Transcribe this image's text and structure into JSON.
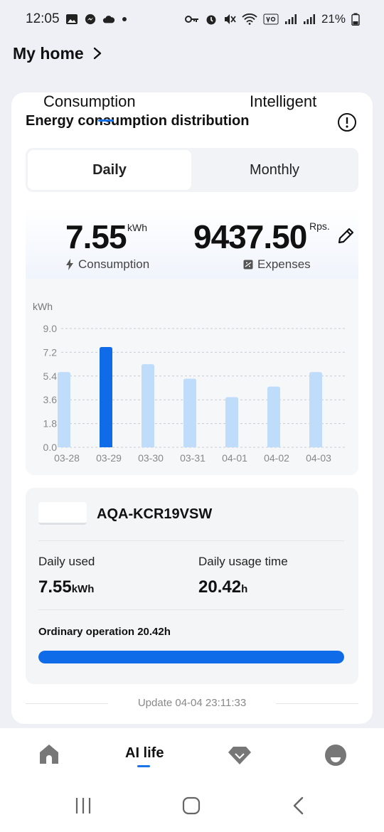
{
  "status_bar": {
    "time": "12:05",
    "battery": "21%"
  },
  "header": {
    "title": "My home"
  },
  "tabs": {
    "consumption": "Consumption",
    "intelligent": "Intelligent"
  },
  "section_title": "Energy consumption distribution",
  "segment": {
    "daily": "Daily",
    "monthly": "Monthly"
  },
  "summary": {
    "consumption_value": "7.55",
    "consumption_unit": "kWh",
    "consumption_label": "Consumption",
    "expenses_value": "9437.50",
    "expenses_unit": "Rps.",
    "expenses_label": "Expenses"
  },
  "chart_data": {
    "type": "bar",
    "ylabel": "kWh",
    "ylim": [
      0,
      9.0
    ],
    "yticks": [
      "0.0",
      "1.8",
      "3.6",
      "5.4",
      "7.2",
      "9.0"
    ],
    "categories": [
      "03-28",
      "03-29",
      "03-30",
      "03-31",
      "04-01",
      "04-02",
      "04-03"
    ],
    "values": [
      5.7,
      7.6,
      6.3,
      5.2,
      3.8,
      4.6,
      5.7
    ],
    "highlight_index": 1,
    "colors": {
      "bar": "#bfdcfa",
      "highlight": "#0f6be8"
    },
    "grid": true
  },
  "device": {
    "name": "AQA-KCR19VSW",
    "daily_used_label": "Daily used",
    "daily_used_value": "7.55",
    "daily_used_unit": "kWh",
    "usage_time_label": "Daily usage time",
    "usage_time_value": "20.42",
    "usage_time_unit": "h",
    "operation_text": "Ordinary operation 20.42h",
    "operation_progress": 1.0
  },
  "update_text": "Update 04-04 23:11:33",
  "bottom_nav": {
    "active_label": "AI life"
  }
}
